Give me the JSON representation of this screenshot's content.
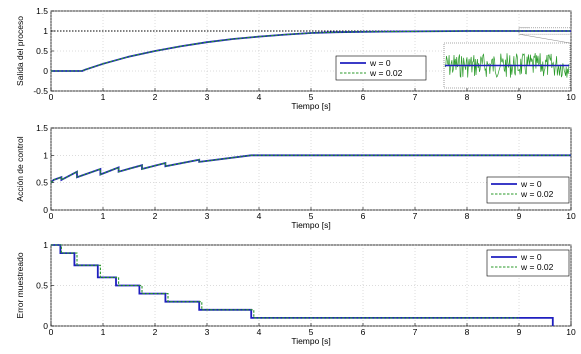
{
  "chart_data": [
    {
      "type": "line",
      "xlabel": "Tiempo [s]",
      "ylabel": "Salida del proceso",
      "xlim": [
        0,
        10
      ],
      "ylim": [
        -0.5,
        1.5
      ],
      "xticks": [
        0,
        1,
        2,
        3,
        4,
        5,
        6,
        7,
        8,
        9,
        10
      ],
      "yticks": [
        -0.5,
        0,
        0.5,
        1,
        1.5
      ],
      "xtick_labels": [
        "0",
        "1",
        "2",
        "3",
        "4",
        "5",
        "6",
        "7",
        "8",
        "9",
        "10"
      ],
      "ytick_labels": [
        "-0.5",
        "0",
        "0.5",
        "1",
        "1.5"
      ],
      "grid": true,
      "legend_position": "center-right",
      "reference": {
        "y": 1,
        "style": "dotted",
        "color": "#000000"
      },
      "series": [
        {
          "name": "w = 0",
          "color": "#1f1fbf",
          "style": "solid",
          "x": [
            0,
            0.6,
            0.65,
            1,
            1.5,
            2,
            2.5,
            3,
            3.5,
            4,
            4.5,
            5,
            5.5,
            6,
            7,
            8,
            9,
            10
          ],
          "y": [
            0,
            0,
            0.03,
            0.18,
            0.36,
            0.5,
            0.62,
            0.72,
            0.8,
            0.86,
            0.91,
            0.95,
            0.97,
            0.98,
            0.99,
            1.0,
            1.0,
            1.0
          ]
        },
        {
          "name": "w = 0.02",
          "color": "#2a9a2a",
          "style": "dashed",
          "x": [
            0,
            0.6,
            0.65,
            1,
            1.5,
            2,
            2.5,
            3,
            3.5,
            4,
            4.5,
            5,
            5.5,
            6,
            7,
            8,
            9,
            10
          ],
          "y": [
            0,
            0,
            0.03,
            0.18,
            0.36,
            0.5,
            0.62,
            0.72,
            0.8,
            0.86,
            0.91,
            0.95,
            0.97,
            0.98,
            0.99,
            1.0,
            1.0,
            1.0
          ]
        }
      ],
      "inset": {
        "description_source": "zoom of steady-state noise",
        "x_range": [
          9,
          10
        ],
        "y_level": 1.0
      }
    },
    {
      "type": "line",
      "xlabel": "Tiempo [s]",
      "ylabel": "Acción de control",
      "xlim": [
        0,
        10
      ],
      "ylim": [
        0,
        1.5
      ],
      "xticks": [
        0,
        1,
        2,
        3,
        4,
        5,
        6,
        7,
        8,
        9,
        10
      ],
      "yticks": [
        0,
        0.5,
        1,
        1.5
      ],
      "xtick_labels": [
        "0",
        "1",
        "2",
        "3",
        "4",
        "5",
        "6",
        "7",
        "8",
        "9",
        "10"
      ],
      "ytick_labels": [
        "0",
        "0.5",
        "1",
        "1.5"
      ],
      "grid": true,
      "legend_position": "bottom-right",
      "series": [
        {
          "name": "w = 0",
          "color": "#1f1fbf",
          "style": "solid",
          "x": [
            0,
            0.05,
            0.2,
            0.2,
            0.5,
            0.5,
            0.95,
            0.95,
            1.3,
            1.3,
            1.75,
            1.75,
            2.2,
            2.2,
            2.85,
            2.85,
            3.85,
            10
          ],
          "y": [
            0.5,
            0.55,
            0.6,
            0.55,
            0.7,
            0.6,
            0.75,
            0.65,
            0.78,
            0.7,
            0.82,
            0.75,
            0.86,
            0.8,
            0.92,
            0.88,
            1.0,
            1.0
          ]
        },
        {
          "name": "w = 0.02",
          "color": "#2a9a2a",
          "style": "dashed",
          "x": [
            0,
            0.05,
            0.2,
            0.2,
            0.5,
            0.5,
            0.95,
            0.95,
            1.3,
            1.3,
            1.75,
            1.75,
            2.2,
            2.2,
            2.85,
            2.85,
            3.85,
            10
          ],
          "y": [
            0.5,
            0.55,
            0.6,
            0.55,
            0.7,
            0.6,
            0.75,
            0.65,
            0.78,
            0.7,
            0.82,
            0.75,
            0.86,
            0.8,
            0.92,
            0.88,
            1.0,
            1.0
          ]
        }
      ]
    },
    {
      "type": "line",
      "xlabel": "Tiempo [s]",
      "ylabel": "Error muestreado",
      "xlim": [
        0,
        10
      ],
      "ylim": [
        0,
        1
      ],
      "xticks": [
        0,
        1,
        2,
        3,
        4,
        5,
        6,
        7,
        8,
        9,
        10
      ],
      "yticks": [
        0,
        0.5,
        1
      ],
      "xtick_labels": [
        "0",
        "1",
        "2",
        "3",
        "4",
        "5",
        "6",
        "7",
        "8",
        "9",
        "10"
      ],
      "ytick_labels": [
        "0",
        "0.5",
        "1"
      ],
      "grid": true,
      "legend_position": "top-right",
      "series": [
        {
          "name": "w = 0",
          "color": "#1f1fbf",
          "style": "step",
          "x": [
            0,
            0.18,
            0.18,
            0.45,
            0.45,
            0.9,
            0.9,
            1.25,
            1.25,
            1.7,
            1.7,
            2.2,
            2.2,
            2.85,
            2.85,
            3.85,
            3.85,
            9.65,
            9.65
          ],
          "y": [
            1,
            1,
            0.9,
            0.9,
            0.75,
            0.75,
            0.6,
            0.6,
            0.5,
            0.5,
            0.4,
            0.4,
            0.3,
            0.3,
            0.2,
            0.2,
            0.1,
            0.1,
            0
          ]
        },
        {
          "name": "w = 0.02",
          "color": "#2a9a2a",
          "style": "dashed-step",
          "x": [
            0,
            0.2,
            0.2,
            0.5,
            0.5,
            0.95,
            0.95,
            1.3,
            1.3,
            1.75,
            1.75,
            2.25,
            2.25,
            2.9,
            2.9,
            3.9,
            3.9,
            9.0
          ],
          "y": [
            1,
            1,
            0.9,
            0.9,
            0.75,
            0.75,
            0.6,
            0.6,
            0.5,
            0.5,
            0.4,
            0.4,
            0.3,
            0.3,
            0.2,
            0.2,
            0.1,
            0.1
          ]
        }
      ]
    }
  ]
}
